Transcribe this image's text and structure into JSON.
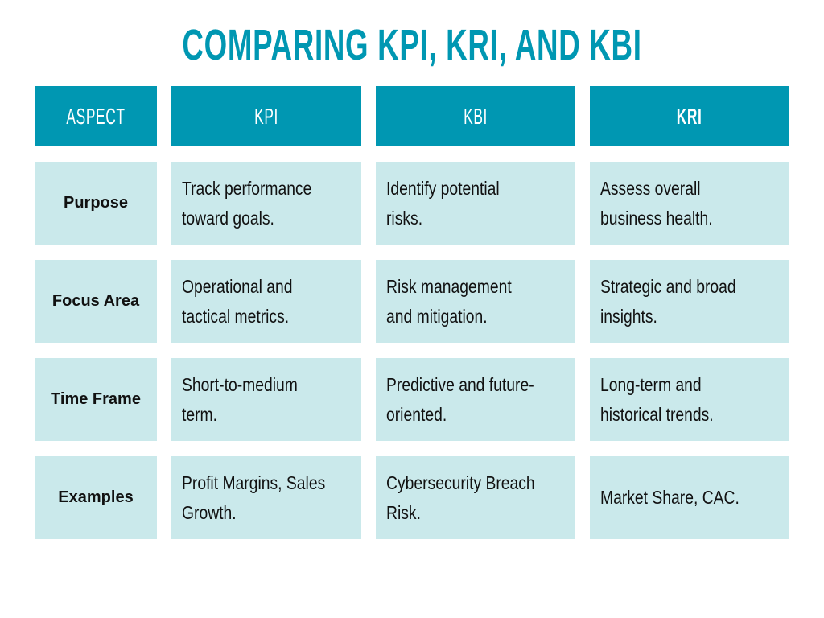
{
  "title": "COMPARING KPI, KRI, AND KBI",
  "colors": {
    "accent": "#0097b2",
    "cell_background": "#cae9eb",
    "header_text": "#ffffff",
    "body_text": "#111111"
  },
  "table": {
    "headers": [
      "ASPECT",
      "KPI",
      "KBI",
      "KRI"
    ],
    "rows": [
      {
        "aspect": "Purpose",
        "kpi": "Track performance toward goals.",
        "kbi": "Identify potential risks.",
        "kri": "Assess overall business health."
      },
      {
        "aspect": "Focus Area",
        "kpi": "Operational and tactical metrics.",
        "kbi": "Risk management and mitigation.",
        "kri": "Strategic and broad insights."
      },
      {
        "aspect": "Time Frame",
        "kpi": "Short-to-medium term.",
        "kbi": "Predictive and future-oriented.",
        "kri": "Long-term and historical trends."
      },
      {
        "aspect": "Examples",
        "kpi": "Profit Margins, Sales Growth.",
        "kbi": "Cybersecurity Breach Risk.",
        "kri": "Market Share, CAC."
      }
    ]
  }
}
